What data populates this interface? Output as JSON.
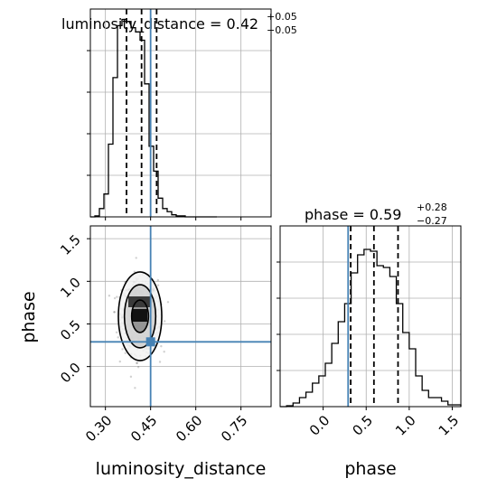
{
  "chart_data": {
    "type": "corner",
    "grid": true,
    "parameters": [
      "luminosity_distance",
      "phase"
    ],
    "truths": {
      "luminosity_distance": 0.45,
      "phase": 0.29
    },
    "panels": [
      {
        "id": "hist_luminosity_distance",
        "type": "histogram",
        "parameter": "luminosity_distance",
        "title": {
          "text": "luminosity_distance = 0.42",
          "plus": "+0.05",
          "minus": "−0.05"
        },
        "xlim": [
          0.25,
          0.85
        ],
        "ylim": [
          0,
          1.0
        ],
        "quantile_lines": [
          0.37,
          0.42,
          0.47
        ],
        "truth": 0.45,
        "bin_edges": [
          0.25,
          0.265,
          0.28,
          0.295,
          0.31,
          0.325,
          0.34,
          0.355,
          0.37,
          0.385,
          0.4,
          0.415,
          0.43,
          0.445,
          0.46,
          0.475,
          0.49,
          0.505,
          0.52,
          0.535,
          0.55,
          0.565,
          0.58,
          0.595,
          0.61,
          0.625,
          0.64,
          0.655,
          0.67
        ],
        "counts": [
          0.0,
          0.005,
          0.04,
          0.11,
          0.35,
          0.67,
          0.92,
          0.95,
          0.94,
          0.91,
          0.89,
          0.85,
          0.64,
          0.34,
          0.22,
          0.09,
          0.04,
          0.025,
          0.01,
          0.005,
          0.005,
          0.0,
          0.0,
          0.0,
          0.0,
          0.0,
          0.0,
          0.0
        ]
      },
      {
        "id": "hist_phase",
        "type": "histogram",
        "parameter": "phase",
        "title": {
          "text": "phase = 0.59",
          "plus": "+0.28",
          "minus": "−0.27"
        },
        "xlim": [
          -0.5,
          1.6
        ],
        "ylim": [
          0,
          1.0
        ],
        "quantile_lines": [
          0.32,
          0.59,
          0.87
        ],
        "truth": 0.29,
        "bin_edges": [
          -0.5,
          -0.425,
          -0.35,
          -0.275,
          -0.2,
          -0.125,
          -0.05,
          0.025,
          0.1,
          0.175,
          0.25,
          0.325,
          0.4,
          0.475,
          0.55,
          0.625,
          0.7,
          0.775,
          0.85,
          0.925,
          1.0,
          1.075,
          1.15,
          1.225,
          1.3,
          1.375,
          1.45,
          1.525,
          1.6
        ],
        "counts": [
          0.0,
          0.005,
          0.02,
          0.05,
          0.08,
          0.13,
          0.17,
          0.24,
          0.35,
          0.47,
          0.57,
          0.74,
          0.84,
          0.87,
          0.86,
          0.78,
          0.77,
          0.72,
          0.57,
          0.41,
          0.32,
          0.17,
          0.09,
          0.05,
          0.05,
          0.03,
          0.01,
          0.01
        ]
      },
      {
        "id": "joint",
        "type": "2d-histogram-contour",
        "x_parameter": "luminosity_distance",
        "y_parameter": "phase",
        "xlim": [
          0.25,
          0.85
        ],
        "ylim": [
          -0.47,
          1.65
        ],
        "truth": {
          "x": 0.45,
          "y": 0.29
        },
        "center": {
          "x": 0.415,
          "y": 0.59
        },
        "contour_half_widths": [
          {
            "level": 1,
            "dx": 0.028,
            "dy": 0.19
          },
          {
            "level": 2,
            "dx": 0.052,
            "dy": 0.37
          },
          {
            "level": 3,
            "dx": 0.072,
            "dy": 0.52
          }
        ]
      }
    ],
    "x_ticks": {
      "luminosity_distance": [
        "0.30",
        "0.45",
        "0.60",
        "0.75"
      ],
      "phase": [
        "0.0",
        "0.5",
        "1.0",
        "1.5"
      ]
    },
    "y_ticks": {
      "phase": [
        "0.0",
        "0.5",
        "1.0",
        "1.5"
      ]
    },
    "xlabels": [
      "luminosity_distance",
      "phase"
    ],
    "ylabel": "phase",
    "colors": {
      "truth": "#4682b4",
      "line": "#000000",
      "grid": "#b0b0b0"
    }
  }
}
